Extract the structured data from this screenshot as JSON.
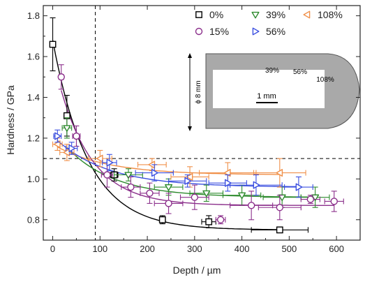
{
  "chart_data": {
    "type": "scatter",
    "xlabel": "Depth / µm",
    "ylabel": "Hardness / GPa",
    "xlim": [
      -20,
      650
    ],
    "ylim": [
      0.7,
      1.85
    ],
    "xticks": [
      0,
      100,
      200,
      300,
      400,
      500,
      600
    ],
    "yticks": [
      0.8,
      1.0,
      1.2,
      1.4,
      1.6,
      1.8
    ],
    "xtick_labels": [
      "0",
      "100",
      "200",
      "300",
      "400",
      "500",
      "600"
    ],
    "ytick_labels": [
      "0.8",
      "1.0",
      "1.2",
      "1.4",
      "1.6",
      "1.8"
    ],
    "reference_lines": {
      "vertical_x": 90,
      "horizontal_y": 1.1
    },
    "legend": {
      "placement": "top-right"
    },
    "series": [
      {
        "name": "0%",
        "color": "#000000",
        "marker": "square",
        "points": [
          {
            "x": 0,
            "y": 1.66,
            "xerr": 0,
            "yerr": 0.13
          },
          {
            "x": 30,
            "y": 1.31,
            "xerr": 5,
            "yerr": 0.1
          },
          {
            "x": 130,
            "y": 1.02,
            "xerr": 8,
            "yerr": 0.03
          },
          {
            "x": 232,
            "y": 0.8,
            "xerr": 5,
            "yerr": 0.02
          },
          {
            "x": 330,
            "y": 0.79,
            "xerr": 15,
            "yerr": 0.03
          },
          {
            "x": 480,
            "y": 0.75,
            "xerr": 60,
            "yerr": 0.01
          }
        ],
        "fit": {
          "type": "exp",
          "a": 0.75,
          "b": 0.93,
          "t": 75
        }
      },
      {
        "name": "39%",
        "color": "#2e8b2e",
        "marker": "triangle-down",
        "points": [
          {
            "x": 30,
            "y": 1.25,
            "xerr": 10,
            "yerr": 0.05
          },
          {
            "x": 160,
            "y": 1.02,
            "xerr": 30,
            "yerr": 0.03
          },
          {
            "x": 245,
            "y": 0.96,
            "xerr": 30,
            "yerr": 0.04
          },
          {
            "x": 325,
            "y": 0.93,
            "xerr": 35,
            "yerr": 0.04
          },
          {
            "x": 400,
            "y": 0.92,
            "xerr": 40,
            "yerr": 0.05
          },
          {
            "x": 485,
            "y": 0.91,
            "xerr": 40,
            "yerr": 0.05
          },
          {
            "x": 555,
            "y": 0.91,
            "xerr": 30,
            "yerr": 0.05
          }
        ],
        "fit": {
          "type": "exp",
          "a": 0.91,
          "b": 0.33,
          "t": 100
        }
      },
      {
        "name": "108%",
        "color": "#f0904a",
        "marker": "triangle-left",
        "points": [
          {
            "x": 10,
            "y": 1.17,
            "xerr": 10,
            "yerr": 0.03
          },
          {
            "x": 30,
            "y": 1.13,
            "xerr": 15,
            "yerr": 0.04
          },
          {
            "x": 100,
            "y": 1.1,
            "xerr": 25,
            "yerr": 0.04
          },
          {
            "x": 210,
            "y": 1.07,
            "xerr": 30,
            "yerr": 0.03
          },
          {
            "x": 290,
            "y": 1.01,
            "xerr": 40,
            "yerr": 0.05
          },
          {
            "x": 370,
            "y": 1.03,
            "xerr": 60,
            "yerr": 0.05
          },
          {
            "x": 480,
            "y": 1.03,
            "xerr": 55,
            "yerr": 0.07
          }
        ],
        "fit": {
          "type": "exp",
          "a": 1.02,
          "b": 0.15,
          "t": 110
        }
      },
      {
        "name": "15%",
        "color": "#8b2f8b",
        "marker": "circle",
        "points": [
          {
            "x": 18,
            "y": 1.5,
            "xerr": 5,
            "yerr": 0.06
          },
          {
            "x": 50,
            "y": 1.21,
            "xerr": 8,
            "yerr": 0.05
          },
          {
            "x": 115,
            "y": 1.02,
            "xerr": 12,
            "yerr": 0.06
          },
          {
            "x": 165,
            "y": 0.96,
            "xerr": 20,
            "yerr": 0.05
          },
          {
            "x": 205,
            "y": 0.93,
            "xerr": 20,
            "yerr": 0.05
          },
          {
            "x": 245,
            "y": 0.88,
            "xerr": 30,
            "yerr": 0.05
          },
          {
            "x": 300,
            "y": 0.91,
            "xerr": 30,
            "yerr": 0.06
          },
          {
            "x": 355,
            "y": 0.8,
            "xerr": 10,
            "yerr": 0.02
          },
          {
            "x": 420,
            "y": 0.87,
            "xerr": 45,
            "yerr": 0.07
          },
          {
            "x": 480,
            "y": 0.86,
            "xerr": 45,
            "yerr": 0.06
          },
          {
            "x": 545,
            "y": 0.9,
            "xerr": 20,
            "yerr": 0.02
          },
          {
            "x": 595,
            "y": 0.89,
            "xerr": 20,
            "yerr": 0.05
          }
        ],
        "fit": {
          "type": "exp",
          "a": 0.87,
          "b": 0.73,
          "t": 70
        }
      },
      {
        "name": "56%",
        "color": "#3b4fe0",
        "marker": "triangle-right",
        "points": [
          {
            "x": 10,
            "y": 1.21,
            "xerr": 8,
            "yerr": 0.03
          },
          {
            "x": 40,
            "y": 1.15,
            "xerr": 12,
            "yerr": 0.03
          },
          {
            "x": 120,
            "y": 1.08,
            "xerr": 15,
            "yerr": 0.04
          },
          {
            "x": 215,
            "y": 1.03,
            "xerr": 40,
            "yerr": 0.04
          },
          {
            "x": 285,
            "y": 0.99,
            "xerr": 40,
            "yerr": 0.03
          },
          {
            "x": 370,
            "y": 0.98,
            "xerr": 40,
            "yerr": 0.04
          },
          {
            "x": 430,
            "y": 0.97,
            "xerr": 55,
            "yerr": 0.05
          },
          {
            "x": 520,
            "y": 0.96,
            "xerr": 30,
            "yerr": 0.05
          }
        ],
        "fit": {
          "type": "exp",
          "a": 0.96,
          "b": 0.25,
          "t": 110
        }
      }
    ],
    "inset": {
      "labels": [
        "ϕ 8 mm",
        "39%",
        "56%",
        "108%",
        "1 mm"
      ]
    }
  }
}
